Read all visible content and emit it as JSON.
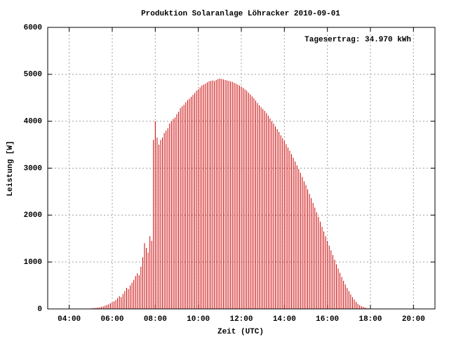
{
  "chart_data": {
    "type": "impulse",
    "title": "Produktion Solaranlage Löhracker 2010-09-01",
    "annotation": "Tagesertrag: 34.970 kWh",
    "x_label": "Zeit (UTC)",
    "y_label": "Leistung [W]",
    "color": "#cc0000",
    "grid": true,
    "xlim": [
      "03:00",
      "21:00"
    ],
    "xticks": [
      "04:00",
      "06:00",
      "08:00",
      "10:00",
      "12:00",
      "14:00",
      "16:00",
      "18:00",
      "20:00"
    ],
    "ylim": [
      0,
      6000
    ],
    "yticks": [
      0,
      1000,
      2000,
      3000,
      4000,
      5000,
      6000
    ],
    "x": [
      "04:55",
      "05:00",
      "05:05",
      "05:10",
      "05:15",
      "05:20",
      "05:25",
      "05:30",
      "05:35",
      "05:40",
      "05:45",
      "05:50",
      "05:55",
      "06:00",
      "06:05",
      "06:10",
      "06:15",
      "06:20",
      "06:25",
      "06:30",
      "06:35",
      "06:40",
      "06:45",
      "06:50",
      "06:55",
      "07:00",
      "07:05",
      "07:10",
      "07:15",
      "07:20",
      "07:25",
      "07:30",
      "07:35",
      "07:40",
      "07:45",
      "07:50",
      "07:55",
      "08:00",
      "08:05",
      "08:10",
      "08:15",
      "08:20",
      "08:25",
      "08:30",
      "08:35",
      "08:40",
      "08:45",
      "08:50",
      "08:55",
      "09:00",
      "09:05",
      "09:10",
      "09:15",
      "09:20",
      "09:25",
      "09:30",
      "09:35",
      "09:40",
      "09:45",
      "09:50",
      "09:55",
      "10:00",
      "10:05",
      "10:10",
      "10:15",
      "10:20",
      "10:25",
      "10:30",
      "10:35",
      "10:40",
      "10:45",
      "10:50",
      "10:55",
      "11:00",
      "11:05",
      "11:10",
      "11:15",
      "11:20",
      "11:25",
      "11:30",
      "11:35",
      "11:40",
      "11:45",
      "11:50",
      "11:55",
      "12:00",
      "12:05",
      "12:10",
      "12:15",
      "12:20",
      "12:25",
      "12:30",
      "12:35",
      "12:40",
      "12:45",
      "12:50",
      "12:55",
      "13:00",
      "13:05",
      "13:10",
      "13:15",
      "13:20",
      "13:25",
      "13:30",
      "13:35",
      "13:40",
      "13:45",
      "13:50",
      "13:55",
      "14:00",
      "14:05",
      "14:10",
      "14:15",
      "14:20",
      "14:25",
      "14:30",
      "14:35",
      "14:40",
      "14:45",
      "14:50",
      "14:55",
      "15:00",
      "15:05",
      "15:10",
      "15:15",
      "15:20",
      "15:25",
      "15:30",
      "15:35",
      "15:40",
      "15:45",
      "15:50",
      "15:55",
      "16:00",
      "16:05",
      "16:10",
      "16:15",
      "16:20",
      "16:25",
      "16:30",
      "16:35",
      "16:40",
      "16:45",
      "16:50",
      "16:55",
      "17:00",
      "17:05",
      "17:10",
      "17:15",
      "17:20",
      "17:25",
      "17:30",
      "17:35",
      "17:40",
      "17:45",
      "17:50",
      "17:55",
      "18:00"
    ],
    "values": [
      5,
      10,
      15,
      20,
      25,
      30,
      35,
      45,
      55,
      70,
      85,
      100,
      120,
      140,
      160,
      190,
      230,
      270,
      250,
      320,
      380,
      450,
      420,
      500,
      560,
      620,
      700,
      760,
      720,
      900,
      1100,
      1400,
      1300,
      1200,
      1550,
      1450,
      3600,
      4000,
      3650,
      3500,
      3600,
      3650,
      3750,
      3800,
      3850,
      3950,
      4000,
      4050,
      4080,
      4150,
      4200,
      4280,
      4320,
      4350,
      4400,
      4450,
      4480,
      4520,
      4560,
      4600,
      4650,
      4680,
      4720,
      4760,
      4780,
      4800,
      4830,
      4850,
      4860,
      4870,
      4860,
      4880,
      4900,
      4910,
      4900,
      4890,
      4880,
      4870,
      4860,
      4850,
      4840,
      4820,
      4800,
      4780,
      4760,
      4740,
      4710,
      4680,
      4650,
      4610,
      4570,
      4530,
      4490,
      4440,
      4390,
      4340,
      4300,
      4260,
      4220,
      4170,
      4120,
      4060,
      4000,
      3950,
      3890,
      3830,
      3770,
      3700,
      3640,
      3580,
      3510,
      3440,
      3370,
      3300,
      3220,
      3140,
      3060,
      2980,
      2900,
      2810,
      2720,
      2640,
      2550,
      2450,
      2360,
      2260,
      2160,
      2060,
      1960,
      1860,
      1750,
      1650,
      1550,
      1450,
      1350,
      1250,
      1150,
      1050,
      950,
      860,
      770,
      680,
      600,
      520,
      450,
      380,
      310,
      250,
      200,
      150,
      110,
      80,
      60,
      45,
      30,
      20,
      12,
      5
    ]
  }
}
